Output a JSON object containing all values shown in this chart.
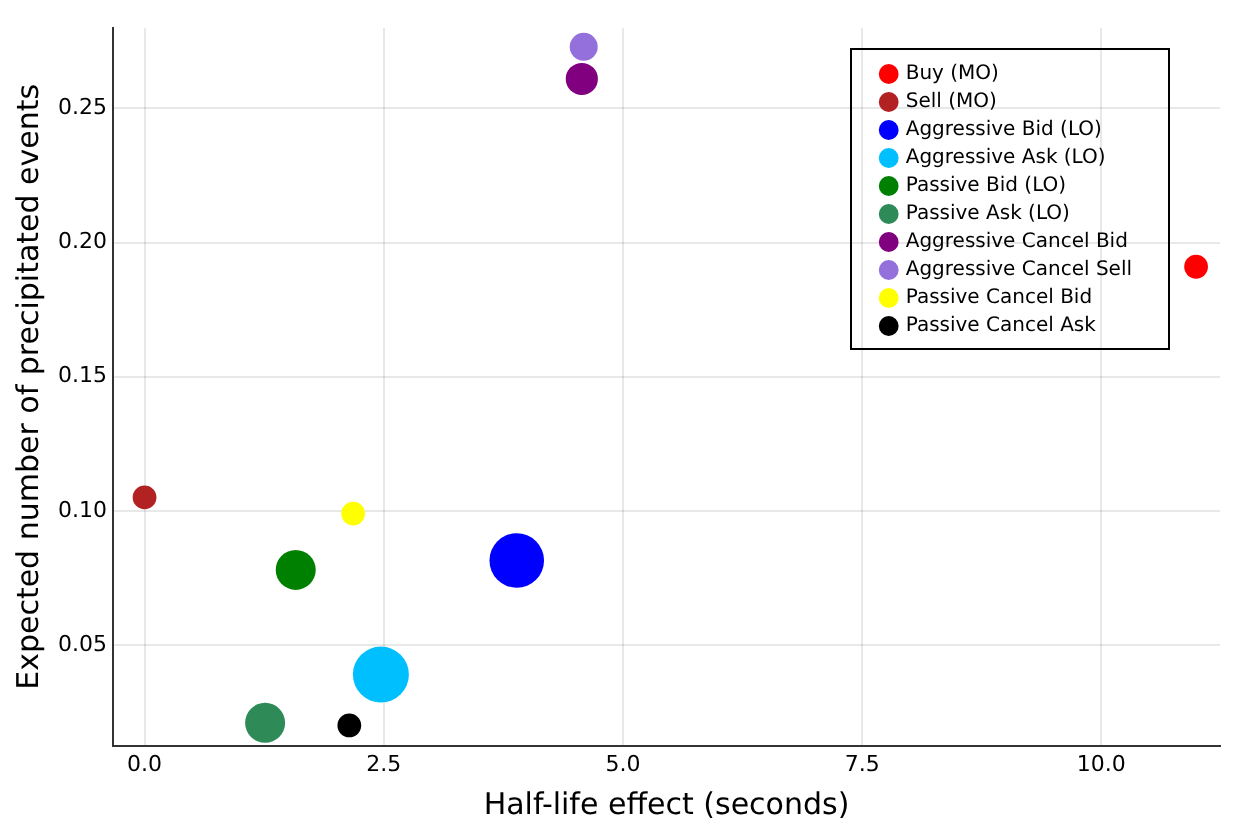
{
  "chart_data": {
    "type": "bubble",
    "xlabel": "Half-life effect (seconds)",
    "ylabel": "Expected number of precipitated events",
    "xlim": [
      -0.33,
      11.24
    ],
    "ylim": [
      0.0125,
      0.28
    ],
    "xticks": [
      {
        "value": 0,
        "label": "0.0"
      },
      {
        "value": 2.5,
        "label": "2.5"
      },
      {
        "value": 5,
        "label": "5.0"
      },
      {
        "value": 7.5,
        "label": "7.5"
      },
      {
        "value": 10,
        "label": "10.0"
      }
    ],
    "yticks": [
      {
        "value": 0.05,
        "label": "0.05"
      },
      {
        "value": 0.1,
        "label": "0.10"
      },
      {
        "value": 0.15,
        "label": "0.15"
      },
      {
        "value": 0.2,
        "label": "0.20"
      },
      {
        "value": 0.25,
        "label": "0.25"
      }
    ],
    "grid": true,
    "legend": "top right",
    "marker": "circle",
    "series": [
      {
        "name": "Buy (MO)",
        "color": "#ff0000",
        "x": [
          10.99
        ],
        "values": [
          0.191
        ],
        "sizes": [
          0.18
        ]
      },
      {
        "name": "Sell (MO)",
        "color": "#b22222",
        "x": [
          0.0
        ],
        "values": [
          0.105
        ],
        "sizes": [
          0.18
        ]
      },
      {
        "name": "Aggressive Bid (LO)",
        "color": "#0000ff",
        "x": [
          3.89
        ],
        "values": [
          0.0815
        ],
        "sizes": [
          0.95
        ]
      },
      {
        "name": "Aggressive Ask (LO)",
        "color": "#00bfff",
        "x": [
          2.47
        ],
        "values": [
          0.039
        ],
        "sizes": [
          1
        ]
      },
      {
        "name": "Passive Bid (LO)",
        "color": "#008000",
        "x": [
          1.58
        ],
        "values": [
          0.078
        ],
        "sizes": [
          0.51
        ]
      },
      {
        "name": "Passive Ask (LO)",
        "color": "#2e8b57",
        "x": [
          1.26
        ],
        "values": [
          0.021
        ],
        "sizes": [
          0.51
        ]
      },
      {
        "name": "Aggressive Cancel Bid",
        "color": "#800080",
        "x": [
          4.57
        ],
        "values": [
          0.261
        ],
        "sizes": [
          0.33
        ]
      },
      {
        "name": "Aggressive Cancel Sell",
        "color": "#9370db",
        "x": [
          4.59
        ],
        "values": [
          0.273
        ],
        "sizes": [
          0.25
        ]
      },
      {
        "name": "Passive Cancel Bid",
        "color": "#ffff00",
        "x": [
          2.18
        ],
        "values": [
          0.099
        ],
        "sizes": [
          0.18
        ]
      },
      {
        "name": "Passive Cancel Ask",
        "color": "#000000",
        "x": [
          2.14
        ],
        "values": [
          0.02
        ],
        "sizes": [
          0.18
        ]
      }
    ]
  }
}
